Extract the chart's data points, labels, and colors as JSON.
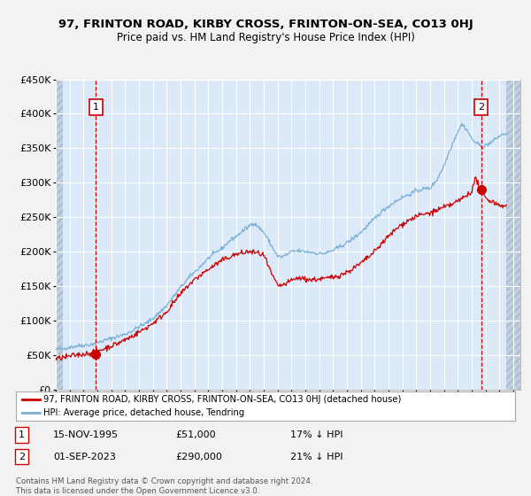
{
  "title": "97, FRINTON ROAD, KIRBY CROSS, FRINTON-ON-SEA, CO13 0HJ",
  "subtitle": "Price paid vs. HM Land Registry's House Price Index (HPI)",
  "ylim": [
    0,
    450000
  ],
  "xlim_start": 1993.0,
  "xlim_end": 2026.5,
  "yticks": [
    0,
    50000,
    100000,
    150000,
    200000,
    250000,
    300000,
    350000,
    400000,
    450000
  ],
  "ytick_labels": [
    "£0",
    "£50K",
    "£100K",
    "£150K",
    "£200K",
    "£250K",
    "£300K",
    "£350K",
    "£400K",
    "£450K"
  ],
  "bg_color": "#dce9f8",
  "hatch_facecolor": "#c0d0e0",
  "grid_color": "#ffffff",
  "line_red_color": "#cc0000",
  "line_blue_color": "#7ab0d4",
  "point1_x": 1995.88,
  "point1_y": 51000,
  "point2_x": 2023.67,
  "point2_y": 290000,
  "hpi_x_knots": [
    1993.0,
    1993.5,
    1994.0,
    1994.5,
    1995.0,
    1995.5,
    1996.0,
    1996.5,
    1997.0,
    1997.5,
    1998.0,
    1998.5,
    1999.0,
    1999.5,
    2000.0,
    2000.5,
    2001.0,
    2001.5,
    2002.0,
    2002.5,
    2003.0,
    2003.5,
    2004.0,
    2004.5,
    2005.0,
    2005.5,
    2006.0,
    2006.5,
    2007.0,
    2007.2,
    2007.5,
    2007.8,
    2008.0,
    2008.3,
    2008.5,
    2008.8,
    2009.0,
    2009.3,
    2009.5,
    2009.8,
    2010.0,
    2010.5,
    2011.0,
    2011.5,
    2012.0,
    2012.5,
    2013.0,
    2013.5,
    2014.0,
    2014.5,
    2015.0,
    2015.5,
    2016.0,
    2016.5,
    2017.0,
    2017.5,
    2018.0,
    2018.5,
    2019.0,
    2019.5,
    2020.0,
    2020.5,
    2021.0,
    2021.5,
    2022.0,
    2022.3,
    2022.6,
    2022.9,
    2023.0,
    2023.3,
    2023.5,
    2023.8,
    2024.0,
    2024.5,
    2025.0,
    2025.5
  ],
  "hpi_y_knots": [
    58000,
    59000,
    61000,
    63000,
    64000,
    65000,
    68000,
    71000,
    74000,
    77000,
    80000,
    85000,
    91000,
    96000,
    103000,
    112000,
    122000,
    135000,
    148000,
    160000,
    170000,
    180000,
    190000,
    198000,
    205000,
    215000,
    222000,
    230000,
    238000,
    242000,
    238000,
    232000,
    228000,
    218000,
    210000,
    200000,
    193000,
    192000,
    194000,
    197000,
    200000,
    201000,
    200000,
    199000,
    197000,
    198000,
    202000,
    207000,
    213000,
    220000,
    228000,
    238000,
    248000,
    258000,
    266000,
    273000,
    279000,
    283000,
    288000,
    291000,
    292000,
    305000,
    325000,
    352000,
    375000,
    385000,
    378000,
    368000,
    363000,
    358000,
    355000,
    352000,
    354000,
    360000,
    368000,
    372000
  ],
  "red_x_knots": [
    1993.0,
    1993.5,
    1994.0,
    1994.5,
    1995.0,
    1995.5,
    1996.0,
    1996.5,
    1997.0,
    1997.5,
    1998.0,
    1998.5,
    1999.0,
    1999.5,
    2000.0,
    2000.5,
    2001.0,
    2001.5,
    2002.0,
    2002.5,
    2003.0,
    2003.5,
    2004.0,
    2004.5,
    2005.0,
    2005.5,
    2006.0,
    2006.5,
    2007.0,
    2007.5,
    2008.0,
    2008.5,
    2009.0,
    2009.5,
    2010.0,
    2010.5,
    2011.0,
    2011.5,
    2012.0,
    2012.5,
    2013.0,
    2013.5,
    2014.0,
    2014.5,
    2015.0,
    2015.5,
    2016.0,
    2016.5,
    2017.0,
    2017.5,
    2018.0,
    2018.5,
    2019.0,
    2019.5,
    2020.0,
    2020.5,
    2021.0,
    2021.5,
    2022.0,
    2022.5,
    2023.0,
    2023.3,
    2023.5,
    2023.8,
    2024.0,
    2024.5,
    2025.0,
    2025.5
  ],
  "red_y_knots": [
    44000,
    46000,
    48000,
    50000,
    51000,
    53000,
    56000,
    59000,
    63000,
    67000,
    72000,
    77000,
    83000,
    89000,
    96000,
    104000,
    113000,
    126000,
    138000,
    150000,
    159000,
    167000,
    174000,
    181000,
    187000,
    192000,
    196000,
    198000,
    200000,
    198000,
    195000,
    170000,
    150000,
    152000,
    158000,
    162000,
    160000,
    159000,
    160000,
    161000,
    163000,
    166000,
    170000,
    176000,
    183000,
    191000,
    200000,
    212000,
    222000,
    232000,
    240000,
    246000,
    251000,
    254000,
    256000,
    260000,
    264000,
    268000,
    273000,
    280000,
    288000,
    308000,
    295000,
    283000,
    278000,
    272000,
    268000,
    265000
  ],
  "legend_label_red": "97, FRINTON ROAD, KIRBY CROSS, FRINTON-ON-SEA, CO13 0HJ (detached house)",
  "legend_label_blue": "HPI: Average price, detached house, Tendring",
  "footer_line1": "Contains HM Land Registry data © Crown copyright and database right 2024.",
  "footer_line2": "This data is licensed under the Open Government Licence v3.0.",
  "table_row1": [
    "1",
    "15-NOV-1995",
    "£51,000",
    "17% ↓ HPI"
  ],
  "table_row2": [
    "2",
    "01-SEP-2023",
    "£290,000",
    "21% ↓ HPI"
  ]
}
